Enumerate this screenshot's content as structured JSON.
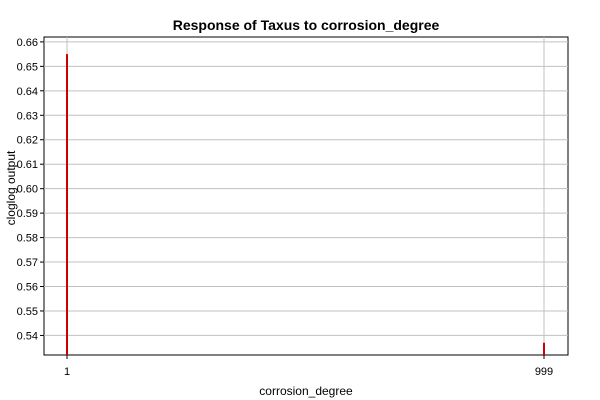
{
  "chart_data": {
    "type": "bar",
    "title": "Response of Taxus to corrosion_degree",
    "xlabel": "corrosion_degree",
    "ylabel": "cloglog output",
    "x_ticks": [
      "1",
      "999"
    ],
    "y_ticks": [
      "0.54",
      "0.55",
      "0.56",
      "0.57",
      "0.58",
      "0.59",
      "0.60",
      "0.61",
      "0.62",
      "0.63",
      "0.64",
      "0.65",
      "0.66"
    ],
    "ylim": [
      0.532,
      0.662
    ],
    "grid": true,
    "color": "#cc0000",
    "categories": [
      "1",
      "999"
    ],
    "values": [
      0.655,
      0.537
    ]
  }
}
